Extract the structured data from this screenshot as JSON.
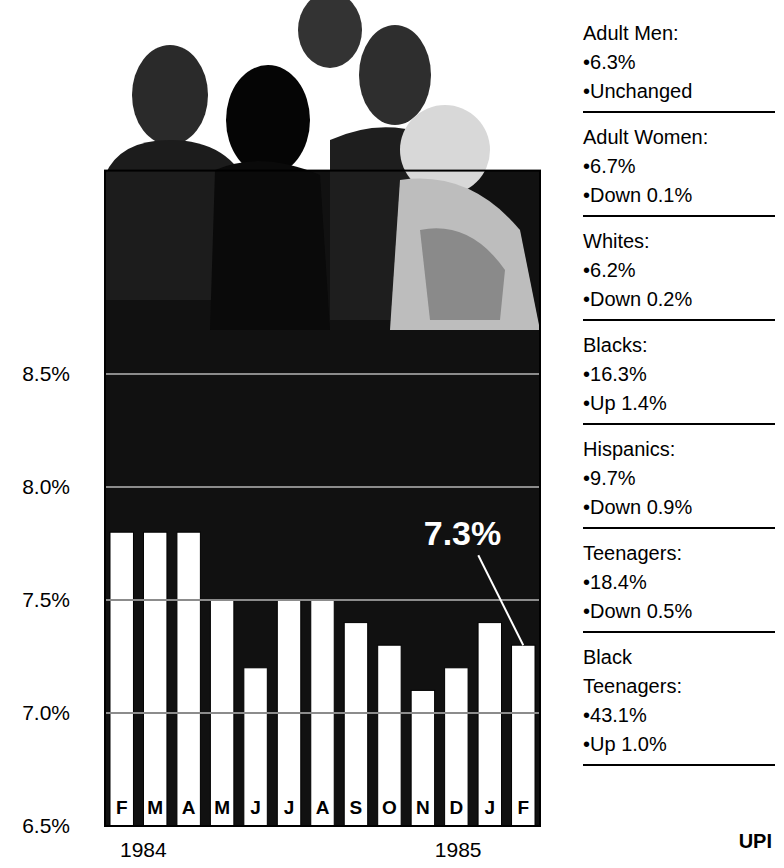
{
  "chart_data": {
    "type": "bar",
    "categories": [
      "F",
      "M",
      "A",
      "M",
      "J",
      "J",
      "A",
      "S",
      "O",
      "N",
      "D",
      "J",
      "F"
    ],
    "values": [
      7.8,
      7.8,
      7.8,
      7.5,
      7.2,
      7.5,
      7.5,
      7.4,
      7.3,
      7.1,
      7.2,
      7.4,
      7.3
    ],
    "color": "#ffffff",
    "ylim": [
      6.5,
      9.4
    ],
    "yticks": [
      {
        "value": 6.5,
        "label": "6.5%"
      },
      {
        "value": 7.0,
        "label": "7.0%"
      },
      {
        "value": 7.5,
        "label": "7.5%"
      },
      {
        "value": 8.0,
        "label": "8.0%"
      },
      {
        "value": 8.5,
        "label": "8.5%"
      }
    ],
    "grid": true,
    "annotations": [
      {
        "text": "7.3%",
        "x": 12,
        "y": 7.3
      },
      {
        "text": "1984",
        "x": 0
      },
      {
        "text": "1985",
        "x": 12
      }
    ],
    "side_panel": [
      {
        "label": "Adult Men:",
        "value": "•6.3%",
        "change": "•Unchanged"
      },
      {
        "label": "Adult Women:",
        "value": "•6.7%",
        "change": "•Down 0.1%"
      },
      {
        "label": "Whites:",
        "value": "•6.2%",
        "change": "•Down 0.2%"
      },
      {
        "label": "Blacks:",
        "value": "•16.3%",
        "change": "•Up 1.4%"
      },
      {
        "label": "Hispanics:",
        "value": "•9.7%",
        "change": "•Down 0.9%"
      },
      {
        "label": "Teenagers:",
        "value": "•18.4%",
        "change": "•Down 0.5%"
      },
      {
        "label": "Black Teenagers:",
        "value": "•43.1%",
        "change": "•Up 1.0%"
      }
    ],
    "source": "UPI"
  }
}
